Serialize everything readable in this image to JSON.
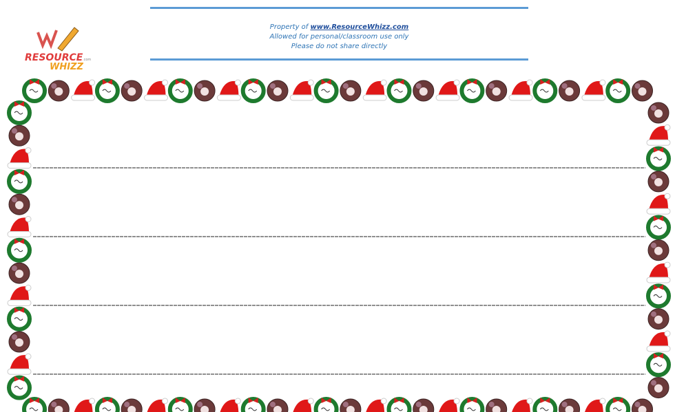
{
  "header": {
    "logo": {
      "line1": "RESOURCE",
      "line2": "WHIZZ",
      "suffix": ".com"
    },
    "notice": {
      "prefix": "Property of",
      "link": "www.ResourceWhizz.com",
      "line2": "Allowed for personal/classroom use only",
      "line3": "Please do not share directly"
    }
  }
}
